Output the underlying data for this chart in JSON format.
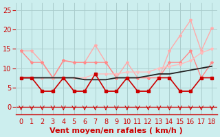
{
  "x": [
    0,
    1,
    2,
    3,
    4,
    5,
    6,
    7,
    8,
    9,
    10,
    11,
    12,
    13,
    14,
    15,
    16,
    17,
    18
  ],
  "line_dark_black": [
    7.5,
    7.5,
    7.5,
    7.5,
    7.5,
    7.5,
    7.0,
    7.0,
    7.0,
    7.5,
    7.5,
    7.5,
    8.0,
    8.5,
    8.5,
    9.0,
    9.5,
    10.0,
    10.5
  ],
  "line_dark_red": [
    7.5,
    7.5,
    4.0,
    4.0,
    7.5,
    4.0,
    4.0,
    8.5,
    4.0,
    4.0,
    7.5,
    4.0,
    4.0,
    7.5,
    7.5,
    4.0,
    4.0,
    7.5,
    7.5
  ],
  "line_light_pink_upper": [
    14.5,
    14.5,
    11.5,
    7.5,
    12.0,
    11.5,
    11.5,
    16.0,
    11.5,
    7.5,
    11.5,
    7.5,
    7.5,
    7.5,
    14.5,
    18.5,
    22.5,
    14.5,
    20.5
  ],
  "line_medium_pink": [
    14.5,
    11.5,
    11.5,
    7.5,
    12.0,
    11.5,
    11.5,
    11.5,
    11.5,
    7.5,
    7.5,
    7.5,
    7.5,
    7.5,
    11.5,
    11.5,
    14.5,
    7.5,
    11.5
  ],
  "line_rising_pink": [
    7.5,
    7.5,
    7.5,
    7.5,
    7.5,
    7.5,
    7.5,
    8.5,
    8.5,
    8.5,
    9.0,
    9.0,
    9.0,
    10.0,
    10.5,
    11.0,
    12.0,
    14.0,
    15.0
  ],
  "colors": {
    "bg": "#cceeee",
    "grid": "#aacccc",
    "dark_black": "#222222",
    "dark_red": "#cc0000",
    "light_pink_upper": "#ffaaaa",
    "medium_pink": "#ff8888",
    "rising_pink": "#ffbbbb",
    "axis_label": "#cc0000",
    "tick_label": "#cc0000",
    "arrow_color": "#cc0000"
  },
  "xlabel": "Vent moyen/en rafales ( km/h )",
  "ylim": [
    -2,
    27
  ],
  "yticks": [
    0,
    5,
    10,
    15,
    20,
    25
  ],
  "xlim": [
    -0.5,
    18.5
  ],
  "title_fontsize": 8,
  "label_fontsize": 7
}
